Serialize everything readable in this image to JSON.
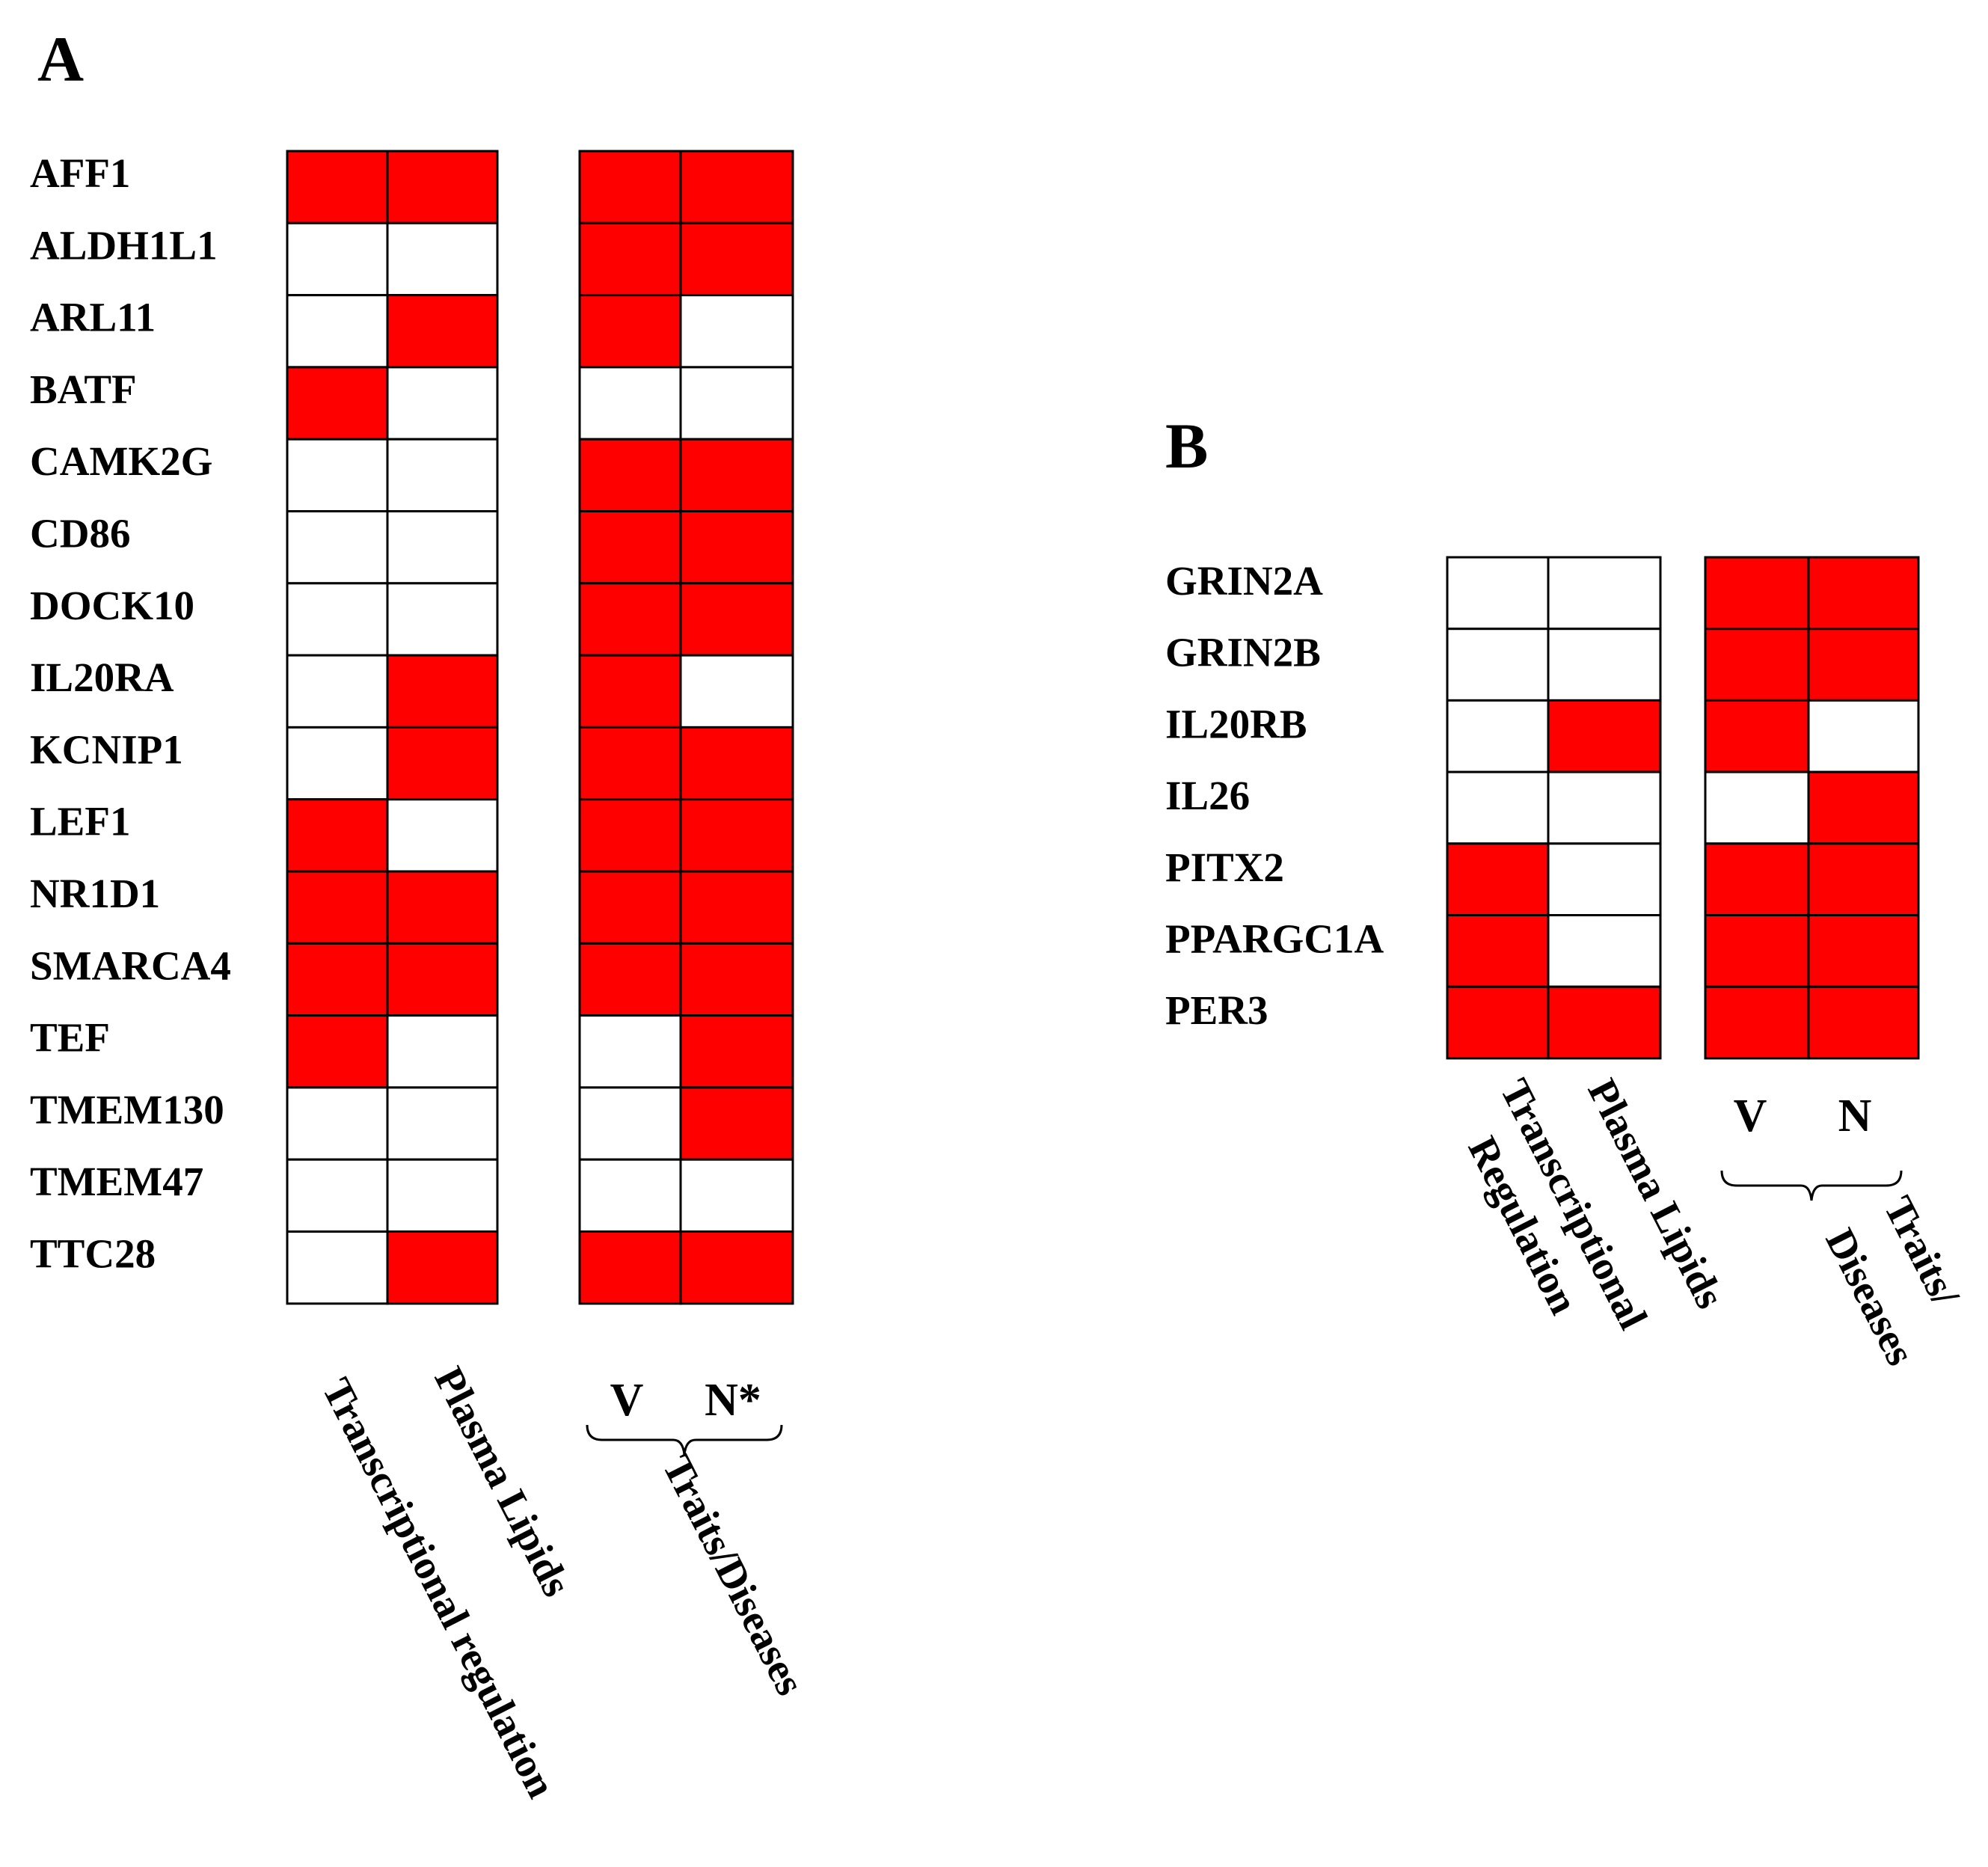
{
  "chart_data": [
    {
      "type": "heatmap",
      "panel": "A",
      "genes": [
        "AFF1",
        "ALDH1L1",
        "ARL11",
        "BATF",
        "CAMK2G",
        "CD86",
        "DOCK10",
        "IL20RA",
        "KCNIP1",
        "LEF1",
        "NR1D1",
        "SMARCA4",
        "TEF",
        "TMEM130",
        "TMEM47",
        "TTC28"
      ],
      "column_labels": [
        "Transcriptional  regulation",
        "Plasma  Lipids"
      ],
      "trait_sublabels": [
        "V",
        "N*"
      ],
      "trait_group_label": "Traits/Diseases",
      "colors": {
        "present": "#ff0000",
        "absent": "#ffffff",
        "grid": "#000000"
      },
      "values": [
        [
          1,
          1,
          1,
          1
        ],
        [
          0,
          0,
          1,
          1
        ],
        [
          0,
          1,
          1,
          0
        ],
        [
          1,
          0,
          0,
          0
        ],
        [
          0,
          0,
          1,
          1
        ],
        [
          0,
          0,
          1,
          1
        ],
        [
          0,
          0,
          1,
          1
        ],
        [
          0,
          1,
          1,
          0
        ],
        [
          0,
          1,
          1,
          1
        ],
        [
          1,
          0,
          1,
          1
        ],
        [
          1,
          1,
          1,
          1
        ],
        [
          1,
          1,
          1,
          1
        ],
        [
          1,
          0,
          0,
          1
        ],
        [
          0,
          0,
          0,
          1
        ],
        [
          0,
          0,
          0,
          0
        ],
        [
          0,
          1,
          1,
          1
        ]
      ]
    },
    {
      "type": "heatmap",
      "panel": "B",
      "genes": [
        "GRIN2A",
        "GRIN2B",
        "IL20RB",
        "IL26",
        "PITX2",
        "PPARGC1A",
        "PER3"
      ],
      "column_labels": [
        "Transcriptional Regulation",
        "Plasma  Lipids"
      ],
      "trait_sublabels": [
        "V",
        "N"
      ],
      "trait_group_label": "Traits/ Diseases",
      "colors": {
        "present": "#ff0000",
        "absent": "#ffffff",
        "grid": "#000000"
      },
      "values": [
        [
          0,
          0,
          1,
          1
        ],
        [
          0,
          0,
          1,
          1
        ],
        [
          0,
          1,
          1,
          0
        ],
        [
          0,
          0,
          0,
          1
        ],
        [
          1,
          0,
          1,
          1
        ],
        [
          1,
          0,
          1,
          1
        ],
        [
          1,
          1,
          1,
          1
        ]
      ]
    }
  ]
}
